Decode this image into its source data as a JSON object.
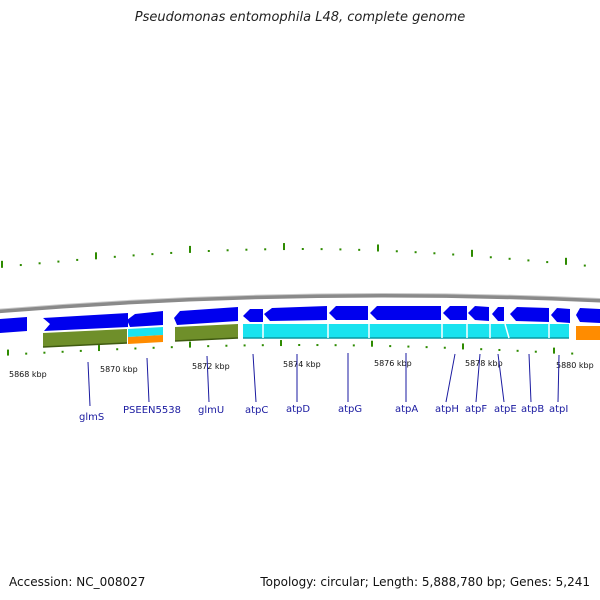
{
  "title": "Pseudomonas entomophila L48, complete genome",
  "footer": {
    "accession": "Accession: NC_008027",
    "summary": "Topology: circular; Length: 5,888,780 bp; Genes: 5,241"
  },
  "colors": {
    "backbone": "#8a8a8a",
    "cds": "#0000ee",
    "cog_olive": "#6f8f2a",
    "cog_cyan": "#19e3ef",
    "cog_orange": "#ff8c00",
    "tick": "#2e8b00",
    "gene_label": "#1a1aa0"
  },
  "coordinates": [
    "5868 kbp",
    "5870 kbp",
    "5872 kbp",
    "5874 kbp",
    "5876 kbp",
    "5878 kbp",
    "5880 kbp"
  ],
  "genes": [
    "glmS",
    "PSEEN5538",
    "glmU",
    "atpC",
    "atpD",
    "atpG",
    "atpA",
    "atpH",
    "atpF",
    "atpE",
    "atpB",
    "atpI"
  ]
}
